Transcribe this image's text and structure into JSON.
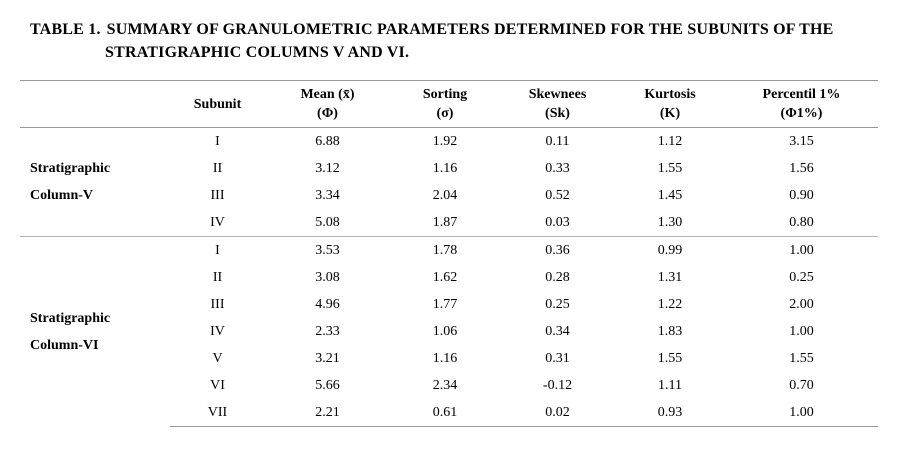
{
  "title": {
    "label": "TABLE 1.",
    "line1": "SUMMARY OF GRANULOMETRIC PARAMETERS DETERMINED FOR THE SUBUNITS OF THE",
    "line2": "STRATIGRAPHIC COLUMNS V AND VI."
  },
  "table": {
    "columns": [
      {
        "name": "Subunit",
        "sub": ""
      },
      {
        "name": "Mean (x̄)",
        "sub": "(Φ)"
      },
      {
        "name": "Sorting",
        "sub": "(σ)"
      },
      {
        "name": "Skewnees",
        "sub": "(Sk)"
      },
      {
        "name": "Kurtosis",
        "sub": "(K)"
      },
      {
        "name": "Percentil 1%",
        "sub": "(Φ1%)"
      }
    ],
    "groups": [
      {
        "label_line1": "Stratigraphic",
        "label_line2": "Column-V",
        "rows": [
          {
            "subunit": "I",
            "mean": "6.88",
            "sorting": "1.92",
            "skewnees": "0.11",
            "kurtosis": "1.12",
            "percentil": "3.15"
          },
          {
            "subunit": "II",
            "mean": "3.12",
            "sorting": "1.16",
            "skewnees": "0.33",
            "kurtosis": "1.55",
            "percentil": "1.56"
          },
          {
            "subunit": "III",
            "mean": "3.34",
            "sorting": "2.04",
            "skewnees": "0.52",
            "kurtosis": "1.45",
            "percentil": "0.90"
          },
          {
            "subunit": "IV",
            "mean": "5.08",
            "sorting": "1.87",
            "skewnees": "0.03",
            "kurtosis": "1.30",
            "percentil": "0.80"
          }
        ]
      },
      {
        "label_line1": "Stratigraphic",
        "label_line2": "Column-VI",
        "rows": [
          {
            "subunit": "I",
            "mean": "3.53",
            "sorting": "1.78",
            "skewnees": "0.36",
            "kurtosis": "0.99",
            "percentil": "1.00"
          },
          {
            "subunit": "II",
            "mean": "3.08",
            "sorting": "1.62",
            "skewnees": "0.28",
            "kurtosis": "1.31",
            "percentil": "0.25"
          },
          {
            "subunit": "III",
            "mean": "4.96",
            "sorting": "1.77",
            "skewnees": "0.25",
            "kurtosis": "1.22",
            "percentil": "2.00"
          },
          {
            "subunit": "IV",
            "mean": "2.33",
            "sorting": "1.06",
            "skewnees": "0.34",
            "kurtosis": "1.83",
            "percentil": "1.00"
          },
          {
            "subunit": "V",
            "mean": "3.21",
            "sorting": "1.16",
            "skewnees": "0.31",
            "kurtosis": "1.55",
            "percentil": "1.55"
          },
          {
            "subunit": "VI",
            "mean": "5.66",
            "sorting": "2.34",
            "skewnees": "-0.12",
            "kurtosis": "1.11",
            "percentil": "0.70"
          },
          {
            "subunit": "VII",
            "mean": "2.21",
            "sorting": "0.61",
            "skewnees": "0.02",
            "kurtosis": "0.93",
            "percentil": "1.00"
          }
        ]
      }
    ]
  }
}
